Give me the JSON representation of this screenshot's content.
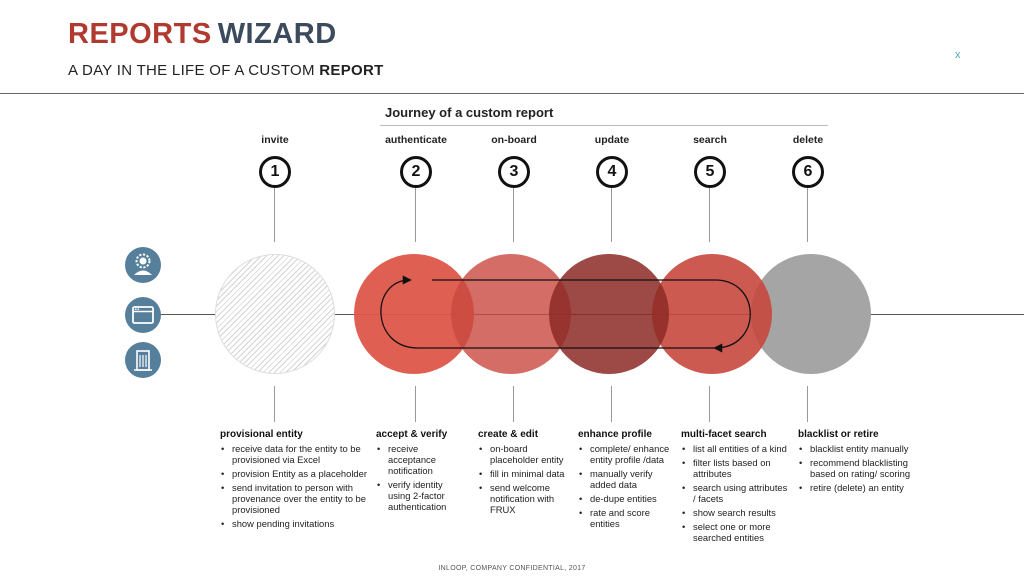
{
  "header": {
    "title_part1": "REPORTS",
    "title_part2": "WIZARD",
    "subtitle_prefix": "A DAY IN THE LIFE OF A CUSTOM ",
    "subtitle_bold": "REPORT",
    "close_label": "x"
  },
  "journey_title": "Journey of a custom report",
  "steps": [
    {
      "number": "1",
      "label": "invite"
    },
    {
      "number": "2",
      "label": "authenticate"
    },
    {
      "number": "3",
      "label": "on-board"
    },
    {
      "number": "4",
      "label": "update"
    },
    {
      "number": "5",
      "label": "search"
    },
    {
      "number": "6",
      "label": "delete"
    }
  ],
  "side_icons": [
    "user-gear-icon",
    "browser-window-icon",
    "building-icon"
  ],
  "columns": [
    {
      "heading": "provisional entity",
      "items": [
        "receive data for the entity to be provisioned via Excel",
        "provision Entity as a placeholder",
        "send invitation to person with provenance over the entity to be provisioned",
        "show pending invitations"
      ]
    },
    {
      "heading": "accept & verify",
      "items": [
        "receive acceptance notification",
        "verify identity using 2-factor authentication"
      ]
    },
    {
      "heading": "create & edit",
      "items": [
        "on-board placeholder entity",
        "fill in minimal data",
        "send welcome notification with FRUX"
      ]
    },
    {
      "heading": "enhance profile",
      "items": [
        "complete/ enhance entity profile /data",
        "manually verify added data",
        "de-dupe entities",
        "rate and score entities"
      ]
    },
    {
      "heading": "multi-facet search",
      "items": [
        "list all entities of a kind",
        "filter lists based on attributes",
        "search using attributes / facets",
        "show search results",
        "select one or more searched entities"
      ]
    },
    {
      "heading": "blacklist or retire",
      "items": [
        "blacklist entity manually",
        "recommend blacklisting based on rating/ scoring",
        "retire (delete) an entity"
      ]
    }
  ],
  "footer": "INLOOP, COMPANY CONFIDENTIAL, 2017",
  "colors": {
    "title_red": "#b03a30",
    "title_navy": "#3b4a5c",
    "circle_red": "#de564a",
    "circle_dark": "#8c2a26",
    "circle_grey": "#a5a5a5",
    "icon_blue": "#557f9b"
  }
}
